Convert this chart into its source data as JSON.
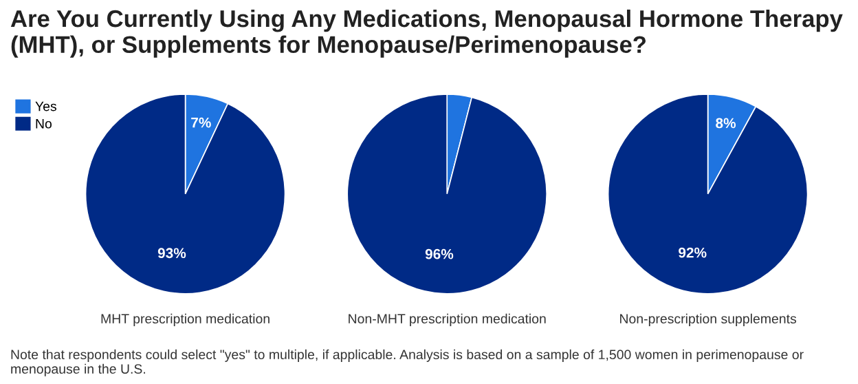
{
  "chart_data": [
    {
      "type": "pie",
      "title": "Are You Currently Using Any Medications, Menopausal Hormone Therapy (MHT), or Supplements for Menopause/Perimenopause?",
      "xlabel": "MHT prescription medication",
      "categories": [
        "Yes",
        "No"
      ],
      "values": [
        7,
        93
      ],
      "colors": [
        "#1f74e0",
        "#002a86"
      ],
      "value_labels": [
        "7%",
        "93%"
      ],
      "legend": "top left",
      "annotations": [
        "Note that respondents could select \"yes\" to multiple, if applicable. Analysis is based on a sample of 1,500 women in perimenopause or menopause in the U.S."
      ]
    },
    {
      "type": "pie",
      "xlabel": "Non-MHT prescription medication",
      "categories": [
        null,
        null
      ],
      "values": [
        4,
        96
      ],
      "colors": [
        "#1f74e0",
        "#002a86"
      ],
      "value_labels": [
        null,
        "96%"
      ]
    },
    {
      "type": "pie",
      "xlabel": "Non-prescription supplements",
      "categories": [
        null,
        null
      ],
      "values": [
        8,
        92
      ],
      "colors": [
        "#1f74e0",
        "#002a86"
      ],
      "value_labels": [
        "8%",
        "92%"
      ]
    }
  ]
}
